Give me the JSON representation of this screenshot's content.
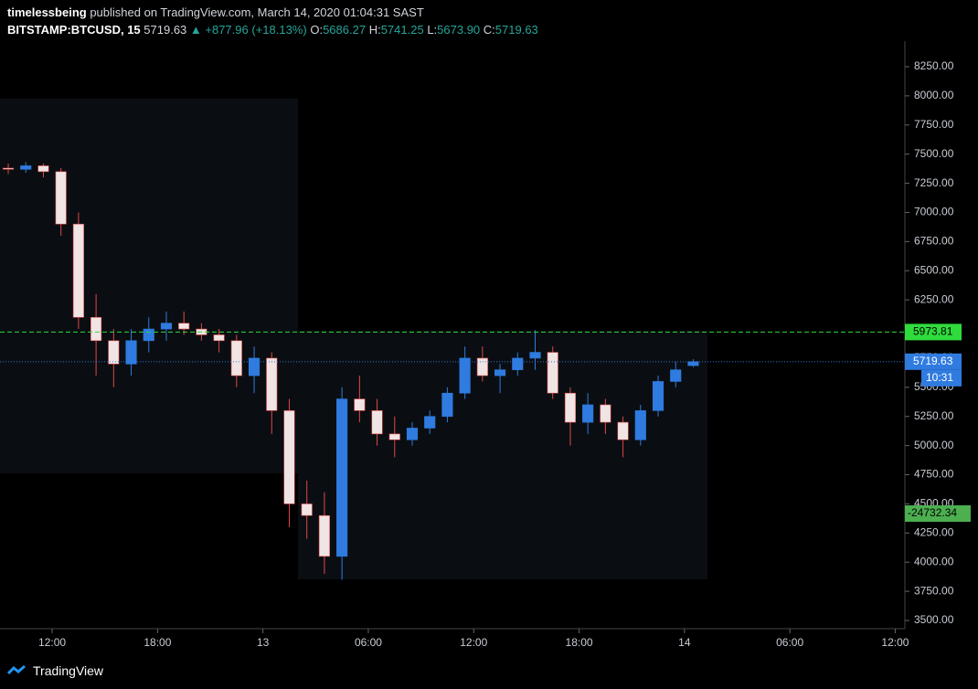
{
  "header": {
    "author": "timelessbeing",
    "published": "published on TradingView.com, March 14, 2020 01:04:31 SAST"
  },
  "chart_data": {
    "type": "candlestick",
    "symbol": "BITSTAMP:BTCUSD, 15",
    "last": "5719.63",
    "change": "▲ +877.96 (+18.13%)",
    "ohlc_labels": [
      "O:",
      "H:",
      "L:",
      "C:"
    ],
    "ohlc_values": [
      "5686.27",
      "5741.25",
      "5673.90",
      "5719.63"
    ],
    "up_color": "#2f7be0",
    "down_color": "#f0e4e4",
    "down_wick": "#e04848",
    "x": [
      9.5,
      10.5,
      11.5,
      12.5,
      13.5,
      14.5,
      15.5,
      16.5,
      17.5,
      18.5,
      19.5,
      20.5,
      21.5,
      22.5,
      23.5,
      24.5,
      25.5,
      26.5,
      27.5,
      28.5,
      29.5,
      30.5,
      31.5,
      32.5,
      33.5,
      34.5,
      35.5,
      36.5,
      37.5,
      38.5,
      39.5,
      40.5,
      41.5,
      42.5,
      43.5,
      44.5,
      45.5,
      46.5,
      47.5,
      48.5
    ],
    "open": [
      7380,
      7370,
      7400,
      7350,
      6900,
      6100,
      5900,
      5700,
      5900,
      6000,
      6050,
      6000,
      5950,
      5900,
      5600,
      5750,
      5300,
      4500,
      4400,
      4050,
      5400,
      5300,
      5100,
      5050,
      5150,
      5250,
      5450,
      5750,
      5600,
      5650,
      5750,
      5800,
      5450,
      5200,
      5350,
      5200,
      5050,
      5300,
      5550,
      5686.27
    ],
    "high": [
      7420,
      7430,
      7420,
      7380,
      7000,
      6300,
      6000,
      6000,
      6100,
      6150,
      6150,
      6050,
      6000,
      5950,
      5850,
      5800,
      5400,
      4700,
      4600,
      5500,
      5600,
      5400,
      5250,
      5200,
      5300,
      5500,
      5850,
      5850,
      5700,
      5800,
      5990,
      5850,
      5500,
      5450,
      5400,
      5250,
      5350,
      5600,
      5720,
      5741.25
    ],
    "low": [
      7330,
      7340,
      7300,
      6800,
      6000,
      5600,
      5500,
      5600,
      5800,
      5900,
      5950,
      5900,
      5800,
      5500,
      5450,
      5100,
      4300,
      4200,
      3900,
      3850,
      5200,
      5000,
      4900,
      5000,
      5100,
      5200,
      5400,
      5550,
      5450,
      5600,
      5650,
      5400,
      5000,
      5100,
      5100,
      4900,
      5000,
      5250,
      5500,
      5673.9
    ],
    "close": [
      7370,
      7400,
      7350,
      6900,
      6100,
      5900,
      5700,
      5900,
      6000,
      6050,
      6000,
      5950,
      5900,
      5600,
      5750,
      5300,
      4500,
      4400,
      4050,
      5400,
      5300,
      5100,
      5050,
      5150,
      5250,
      5450,
      5750,
      5600,
      5650,
      5750,
      5800,
      5450,
      5200,
      5350,
      5200,
      5050,
      5300,
      5550,
      5650,
      5719.63
    ],
    "xlim": [
      9.03,
      60.55
    ],
    "xticks": [
      {
        "value": 12,
        "label": "12:00"
      },
      {
        "value": 18,
        "label": "18:00"
      },
      {
        "value": 24,
        "label": "13"
      },
      {
        "value": 30,
        "label": "06:00"
      },
      {
        "value": 36,
        "label": "12:00"
      },
      {
        "value": 42,
        "label": "18:00"
      },
      {
        "value": 48,
        "label": "14"
      },
      {
        "value": 54,
        "label": "06:00"
      },
      {
        "value": 60,
        "label": "12:00"
      }
    ],
    "ylim": [
      3500,
      8250
    ],
    "yticks": [
      {
        "value": 3500,
        "label": "3500.00"
      },
      {
        "value": 3750,
        "label": "3750.00"
      },
      {
        "value": 4000,
        "label": "4000.00"
      },
      {
        "value": 4250,
        "label": "4250.00"
      },
      {
        "value": 4500,
        "label": "4500.00"
      },
      {
        "value": 4750,
        "label": "4750.00"
      },
      {
        "value": 5000,
        "label": "5000.00"
      },
      {
        "value": 5250,
        "label": "5250.00"
      },
      {
        "value": 5500,
        "label": "5500.00"
      },
      {
        "value": 5750,
        "label": "5750.00"
      },
      {
        "value": 6000,
        "label": "6000.00"
      },
      {
        "value": 6250,
        "label": "6250.00"
      },
      {
        "value": 6500,
        "label": "6500.00"
      },
      {
        "value": 6750,
        "label": "6750.00"
      },
      {
        "value": 7000,
        "label": "7000.00"
      },
      {
        "value": 7250,
        "label": "7250.00"
      },
      {
        "value": 7500,
        "label": "7500.00"
      },
      {
        "value": 7750,
        "label": "7750.00"
      },
      {
        "value": 8000,
        "label": "8000.00"
      },
      {
        "value": 8250,
        "label": "8250.00"
      }
    ],
    "lines": [
      {
        "value": 5973.81,
        "label": "5973.81",
        "color": "#2fdc3c"
      },
      {
        "value": 5719.63,
        "label": "5719.63",
        "color": "#2f7be0"
      }
    ],
    "countdown": "10:31",
    "indicator_label": "-24732.34"
  },
  "footer": {
    "brand": "TradingView"
  }
}
